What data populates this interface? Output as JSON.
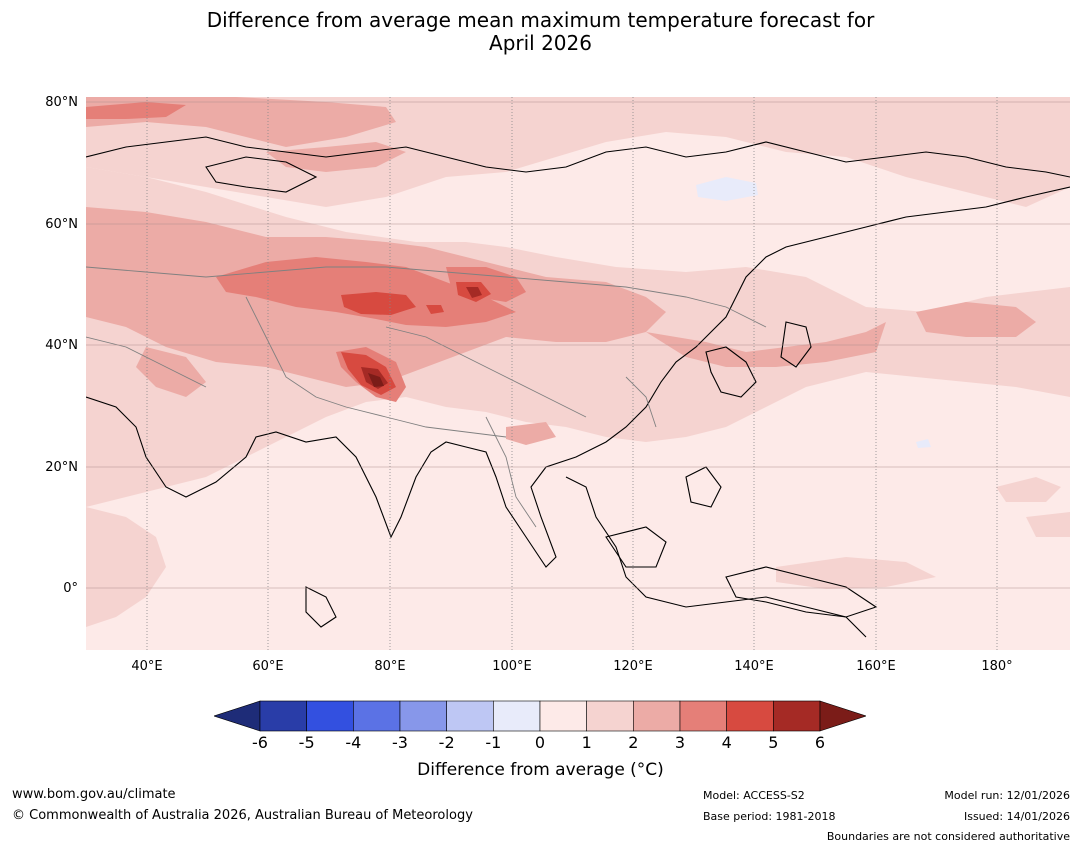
{
  "title_line1": "Difference from average mean maximum temperature forecast for",
  "title_line2": "April 2026",
  "map": {
    "lat_labels": [
      "80°N",
      "60°N",
      "40°N",
      "20°N",
      "0°"
    ],
    "lon_labels": [
      "40°E",
      "60°E",
      "80°E",
      "100°E",
      "120°E",
      "140°E",
      "160°E",
      "180°"
    ],
    "extent": {
      "lon_min": 30,
      "lon_max": 191,
      "lat_min": -10,
      "lat_max": 81
    }
  },
  "colorbar": {
    "ticks": [
      "-6",
      "-5",
      "-4",
      "-3",
      "-2",
      "-1",
      "0",
      "1",
      "2",
      "3",
      "4",
      "5",
      "6"
    ],
    "colors": [
      "#293da8",
      "#3350e0",
      "#5b72e5",
      "#8797ea",
      "#bec7f4",
      "#e8ebfa",
      "#fdeae8",
      "#f5d3d0",
      "#ecaba6",
      "#e57f78",
      "#d74a40",
      "#a52a25"
    ],
    "under_color": "#1e2c78",
    "over_color": "#7b1c18",
    "label": "Difference from average (°C)"
  },
  "footer": {
    "website": "www.bom.gov.au/climate",
    "copyright": "© Commonwealth of Australia 2026, Australian Bureau of Meteorology",
    "model": "Model: ACCESS-S2",
    "base_period": "Base period: 1981-2018",
    "model_run": "Model run: 12/01/2026",
    "issued": "Issued: 14/01/2026",
    "disclaimer": "Boundaries are not considered authoritative"
  }
}
